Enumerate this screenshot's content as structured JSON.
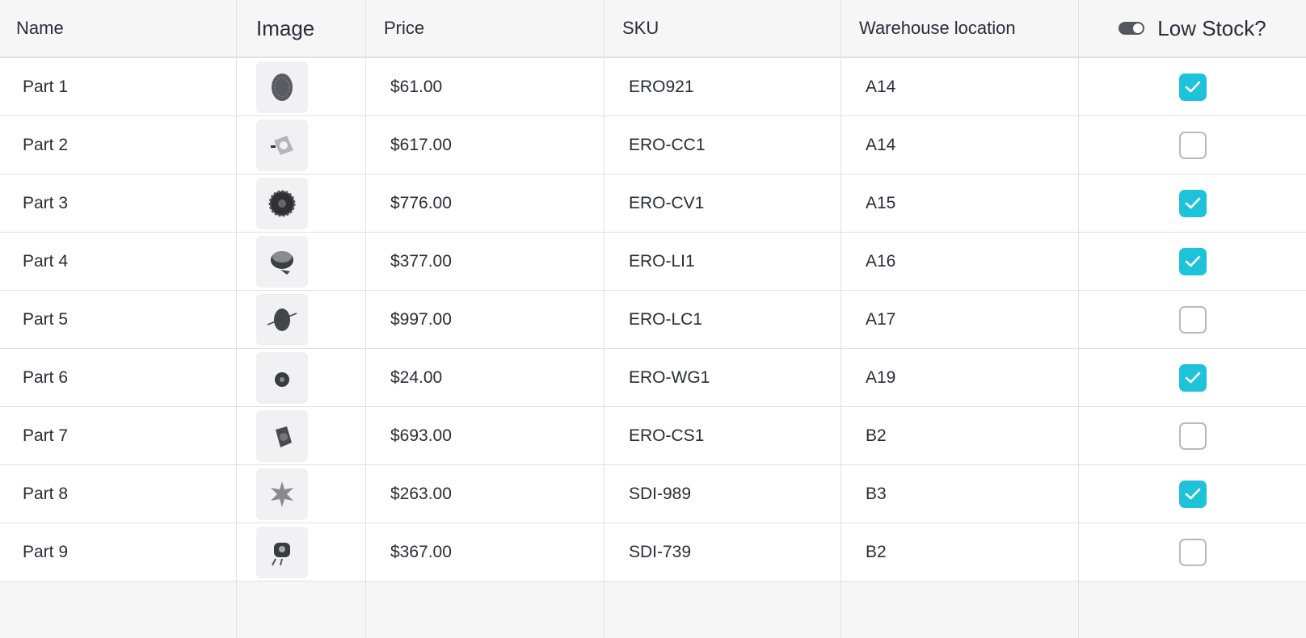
{
  "columns": {
    "name": "Name",
    "image": "Image",
    "price": "Price",
    "sku": "SKU",
    "location": "Warehouse location",
    "low_stock": "Low Stock?"
  },
  "accent": "#1ec3d9",
  "rows": [
    {
      "name": "Part 1",
      "price": "$61.00",
      "sku": "ERO921",
      "location": "A14",
      "low_stock": true,
      "icon": "disc-part-image"
    },
    {
      "name": "Part 2",
      "price": "$617.00",
      "sku": "ERO-CC1",
      "location": "A14",
      "low_stock": false,
      "icon": "bracket-part-image"
    },
    {
      "name": "Part 3",
      "price": "$776.00",
      "sku": "ERO-CV1",
      "location": "A15",
      "low_stock": true,
      "icon": "gear-part-image"
    },
    {
      "name": "Part 4",
      "price": "$377.00",
      "sku": "ERO-LI1",
      "location": "A16",
      "low_stock": true,
      "icon": "sleeve-part-image"
    },
    {
      "name": "Part 5",
      "price": "$997.00",
      "sku": "ERO-LC1",
      "location": "A17",
      "low_stock": false,
      "icon": "hub-part-image"
    },
    {
      "name": "Part 6",
      "price": "$24.00",
      "sku": "ERO-WG1",
      "location": "A19",
      "low_stock": true,
      "icon": "wheel-part-image"
    },
    {
      "name": "Part 7",
      "price": "$693.00",
      "sku": "ERO-CS1",
      "location": "B2",
      "low_stock": false,
      "icon": "housing-part-image"
    },
    {
      "name": "Part 8",
      "price": "$263.00",
      "sku": "SDI-989",
      "location": "B3",
      "low_stock": true,
      "icon": "impeller-part-image"
    },
    {
      "name": "Part 9",
      "price": "$367.00",
      "sku": "SDI-739",
      "location": "B2",
      "low_stock": false,
      "icon": "motor-part-image"
    }
  ]
}
